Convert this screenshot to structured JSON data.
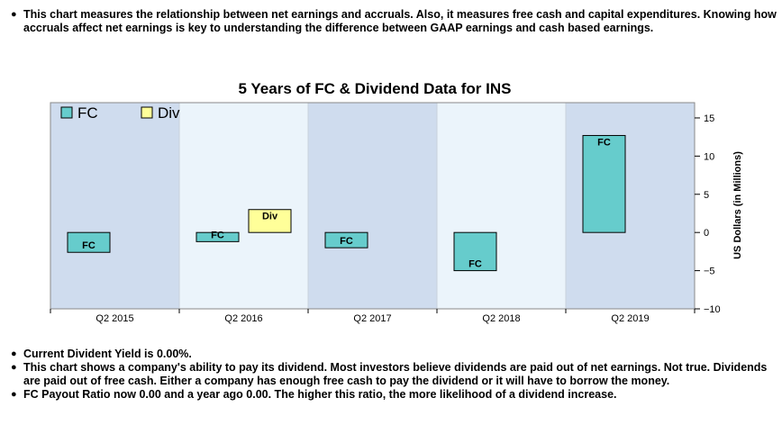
{
  "intro": {
    "text": "This chart measures the relationship between net earnings and accruals. Also, it measures free cash and capital expenditures. Knowing how accruals affect net earnings is key to understanding the difference between GAAP earnings and cash based earnings."
  },
  "notes": [
    "Current Divident Yield is 0.00%.",
    "This chart shows a company's ability to pay its dividend. Most investors believe dividends are paid out of net earnings. Not true. Dividends are paid out of free cash. Either a company has enough free cash to pay the dividend or it will have to borrow the money.",
    "FC Payout Ratio now 0.00 and a year ago 0.00. The higher this ratio, the more likelihood of a dividend increase."
  ],
  "chart_data": {
    "type": "bar",
    "title": "5 Years of FC & Dividend Data for INS",
    "ylabel": "US Dollars (in Millions)",
    "categories": [
      "Q2 2015",
      "Q2 2016",
      "Q2 2017",
      "Q2 2018",
      "Q2 2019"
    ],
    "series": [
      {
        "name": "FC",
        "values": [
          -2.6,
          -1.2,
          -2.0,
          -5.0,
          12.7
        ],
        "color": "#66cccc"
      },
      {
        "name": "Div",
        "values": [
          0,
          3.0,
          0,
          0,
          0
        ],
        "color": "#ffff99"
      }
    ],
    "ylim": [
      -10,
      17
    ],
    "yticks": [
      -10,
      -5,
      0,
      5,
      10,
      15
    ],
    "legend": "top-left",
    "grid": false,
    "band_colors": [
      "#cfdcee",
      "#ebf4fb"
    ],
    "bar_labels": [
      "FC",
      "FC",
      "FC",
      "FC",
      "FC"
    ],
    "div_labels": [
      "",
      "Div",
      "",
      "",
      ""
    ]
  }
}
